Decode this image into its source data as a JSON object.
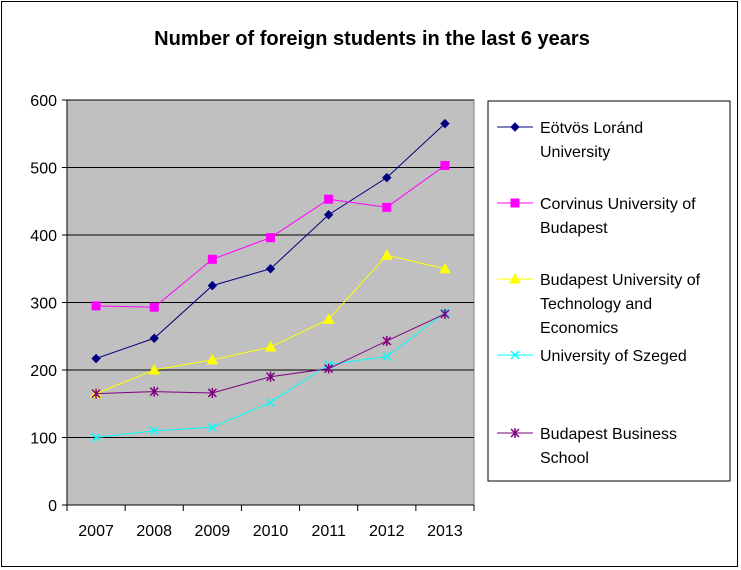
{
  "chart_data": {
    "type": "line",
    "title": "Number of foreign students in the last 6 years",
    "xlabel": "",
    "ylabel": "",
    "categories": [
      "2007",
      "2008",
      "2009",
      "2010",
      "2011",
      "2012",
      "2013"
    ],
    "ylim": [
      0,
      600
    ],
    "yticks": [
      0,
      100,
      200,
      300,
      400,
      500,
      600
    ],
    "plot_background": "#c0c0c0",
    "legend_position": "right",
    "series": [
      {
        "name": "Eötvös Loránd University",
        "legend_lines": [
          "Eötvös Loránd",
          "University"
        ],
        "color": "#000080",
        "marker": "diamond",
        "values": [
          217,
          247,
          325,
          350,
          430,
          485,
          565
        ]
      },
      {
        "name": "Corvinus University of Budapest",
        "legend_lines": [
          "Corvinus University of",
          "Budapest"
        ],
        "color": "#ff00ff",
        "marker": "square",
        "values": [
          295,
          293,
          364,
          396,
          453,
          441,
          503
        ]
      },
      {
        "name": "Budapest University of Technology and Economics",
        "legend_lines": [
          "Budapest University of",
          "Technology and",
          "Economics"
        ],
        "color": "#ffff00",
        "marker": "triangle",
        "values": [
          165,
          200,
          215,
          234,
          275,
          370,
          350
        ]
      },
      {
        "name": "University of Szeged",
        "legend_lines": [
          "University of Szeged"
        ],
        "color": "#00ffff",
        "marker": "x",
        "values": [
          100,
          110,
          115,
          152,
          208,
          220,
          285
        ]
      },
      {
        "name": "Budapest Business School",
        "legend_lines": [
          "Budapest Business",
          "School"
        ],
        "color": "#800080",
        "marker": "star",
        "values": [
          165,
          168,
          166,
          190,
          202,
          243,
          283
        ]
      }
    ]
  }
}
